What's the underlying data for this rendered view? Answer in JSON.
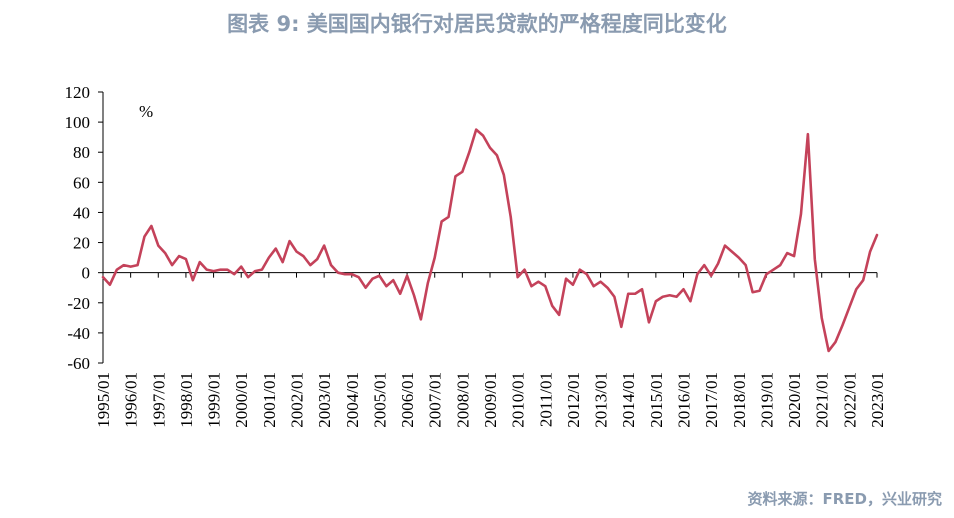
{
  "title": "图表 9:   美国国内银行对居民贷款的严格程度同比变化",
  "source": "资料来源：FRED，兴业研究",
  "chart_data": {
    "type": "line",
    "unit_label": "%",
    "ylim": [
      -60,
      120
    ],
    "yticks": [
      "120",
      "100",
      "80",
      "60",
      "40",
      "20",
      "0",
      "-20",
      "-40",
      "-60"
    ],
    "ytick_values": [
      120,
      100,
      80,
      60,
      40,
      20,
      0,
      -20,
      -40,
      -60
    ],
    "xticks": [
      "1995/01",
      "1996/01",
      "1997/01",
      "1998/01",
      "1999/01",
      "2000/01",
      "2001/01",
      "2002/01",
      "2003/01",
      "2004/01",
      "2005/01",
      "2006/01",
      "2007/01",
      "2008/01",
      "2009/01",
      "2010/01",
      "2011/01",
      "2012/01",
      "2013/01",
      "2014/01",
      "2015/01",
      "2016/01",
      "2017/01",
      "2018/01",
      "2019/01",
      "2020/01",
      "2021/01",
      "2022/01",
      "2023/01"
    ],
    "series": [
      {
        "color": "#c4425a",
        "x_start": "1995/01",
        "frequency": "quarterly",
        "values": [
          -3,
          -8,
          2,
          5,
          4,
          5,
          24,
          31,
          18,
          13,
          5,
          11,
          9,
          -5,
          7,
          2,
          1,
          2,
          2,
          -1,
          4,
          -3,
          1,
          2,
          10,
          16,
          7,
          21,
          14,
          11,
          5,
          9,
          18,
          5,
          0,
          -1,
          -1,
          -3,
          -10,
          -4,
          -2,
          -9,
          -5,
          -14,
          -2,
          -15,
          -31,
          -7,
          10,
          34,
          37,
          64,
          67,
          80,
          95,
          91,
          83,
          78,
          65,
          37,
          -3,
          2,
          -9,
          -6,
          -9,
          -22,
          -28,
          -4,
          -8,
          2,
          -1,
          -9,
          -6,
          -10,
          -16,
          -36,
          -14,
          -14,
          -11,
          -33,
          -19,
          -16,
          -15,
          -16,
          -11,
          -19,
          -1,
          5,
          -2,
          6,
          18,
          14,
          10,
          5,
          -13,
          -12,
          -1,
          2,
          5,
          13,
          11,
          39,
          92,
          9,
          -30,
          -52,
          -46,
          -35,
          -23,
          -11,
          -5,
          14,
          25
        ]
      }
    ]
  }
}
